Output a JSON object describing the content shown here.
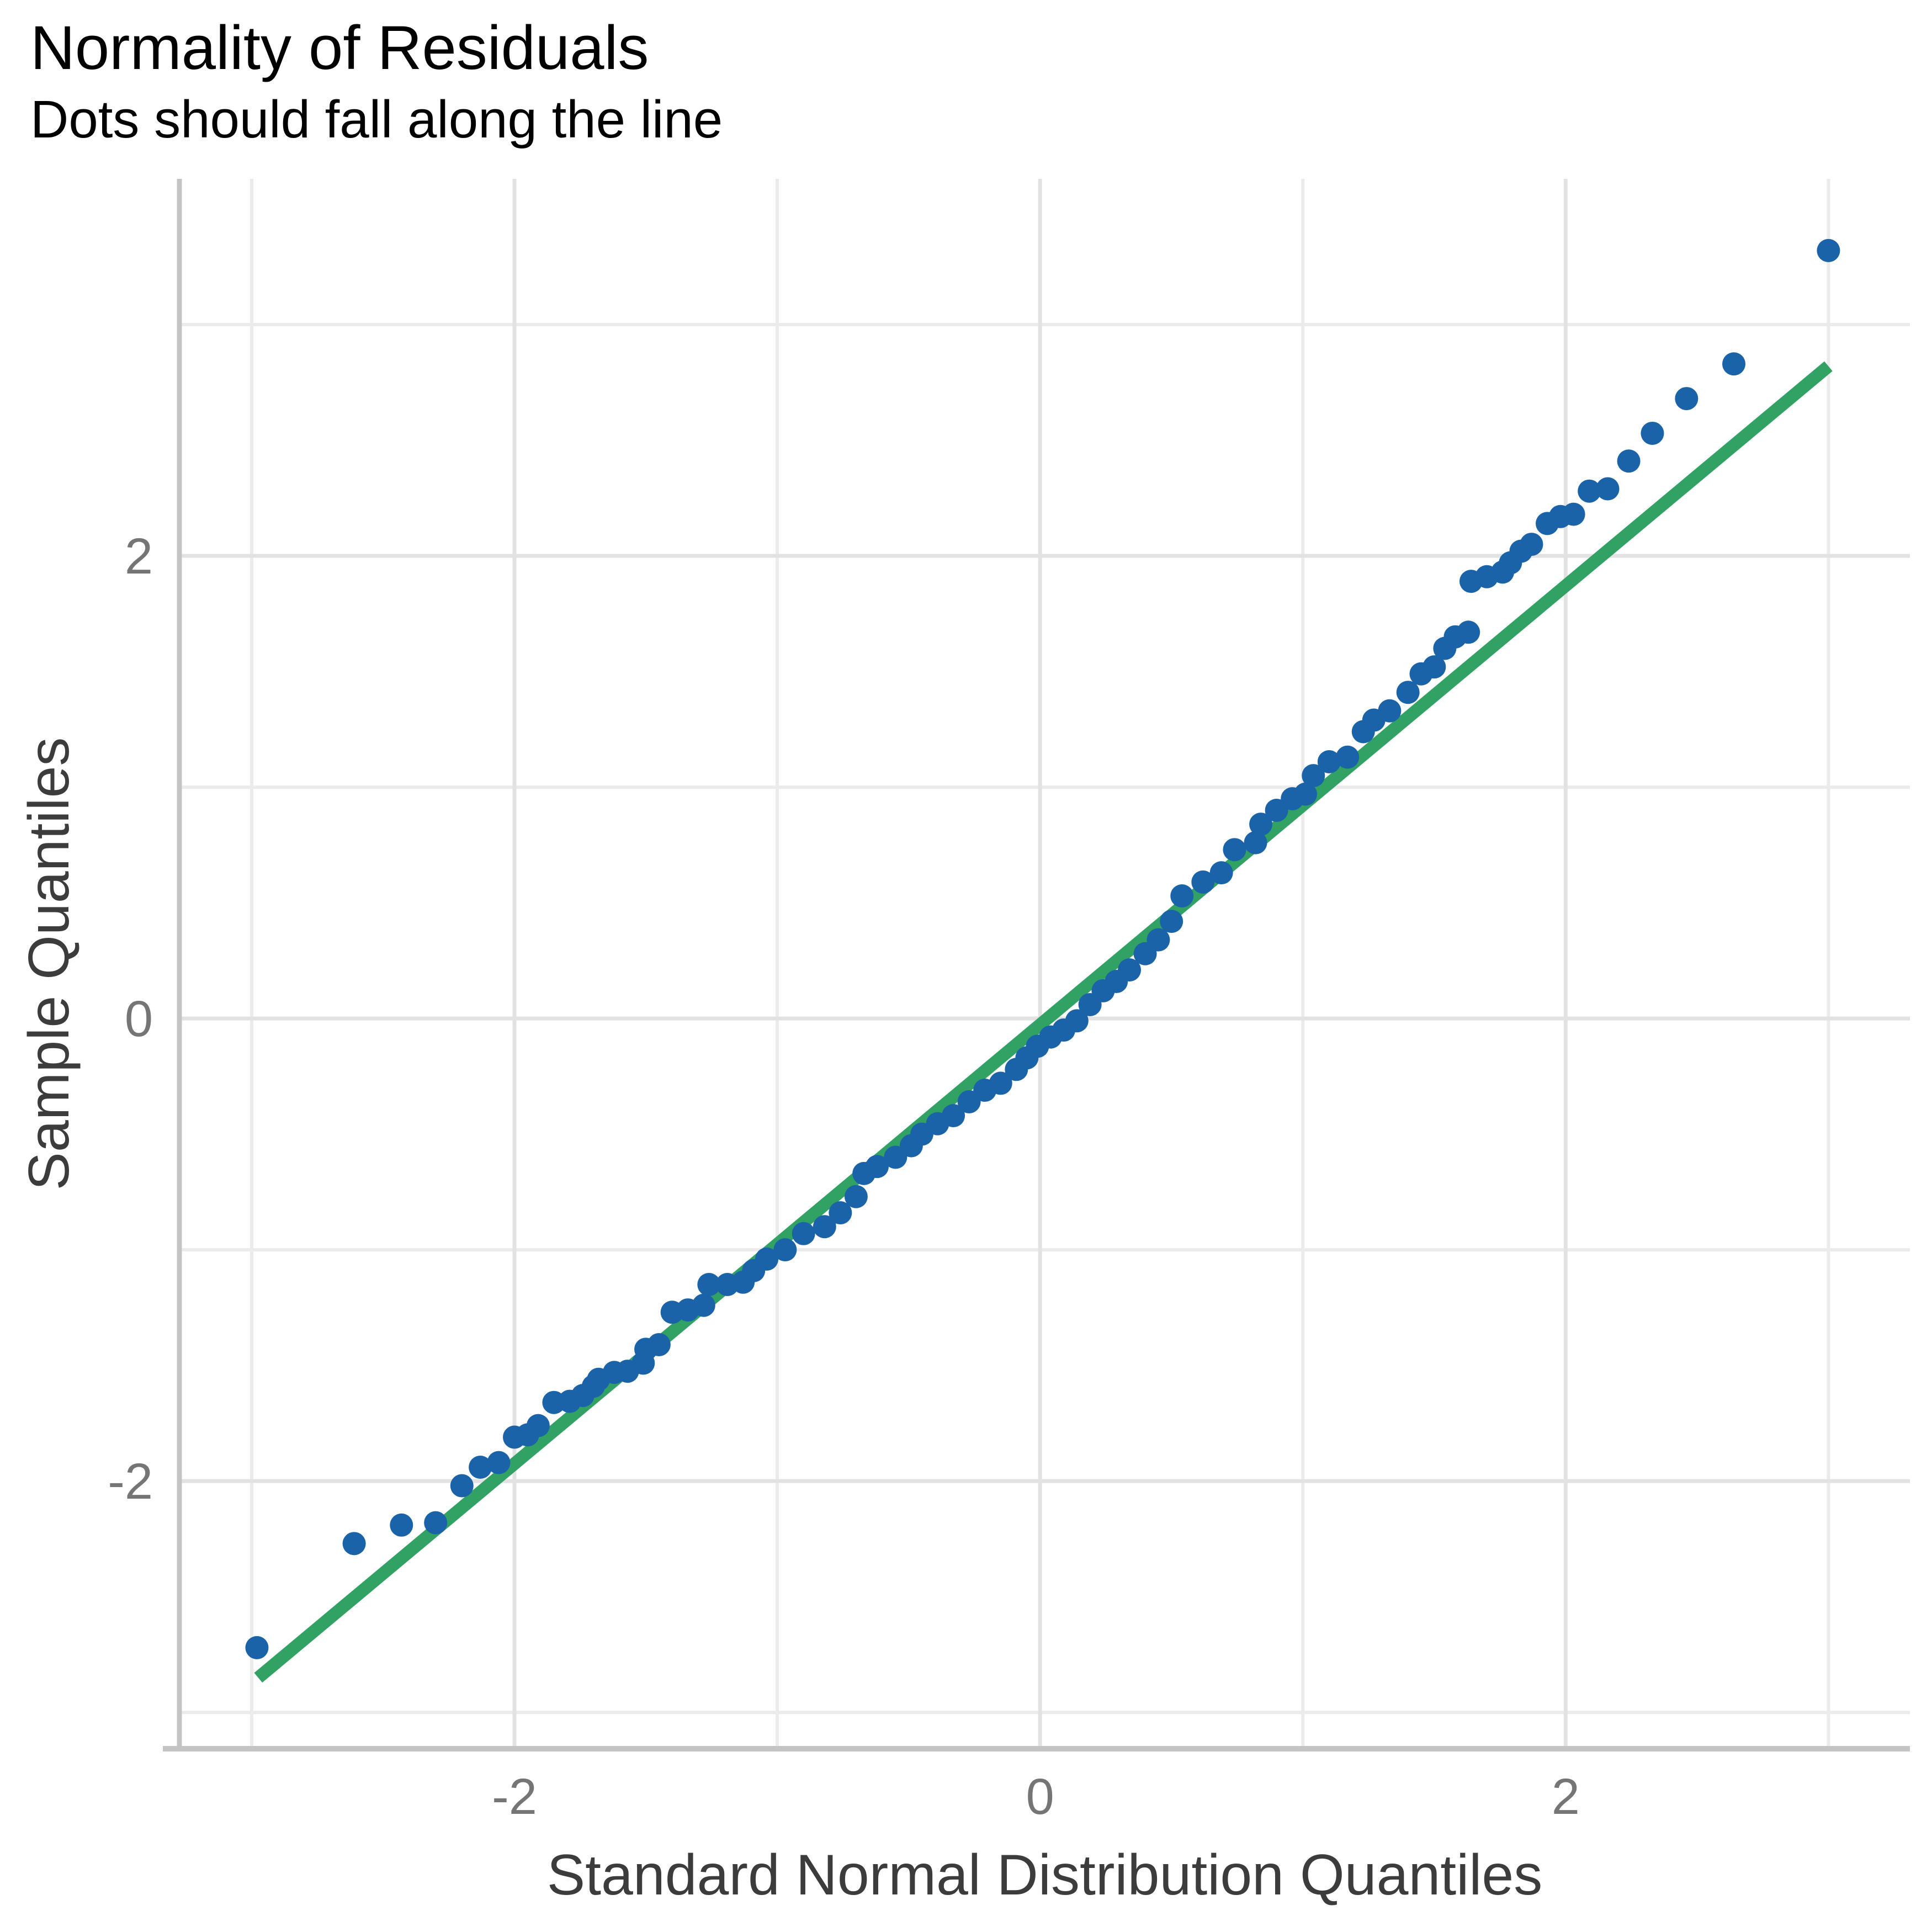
{
  "title": "Normality of Residuals",
  "subtitle": "Dots should fall along the line",
  "x_axis": {
    "label": "Standard Normal Distribution Quantiles",
    "tick_labels": [
      "-2",
      "0",
      "2"
    ],
    "tick_values": [
      -2,
      0,
      2
    ],
    "minor_gridlines": [
      -3,
      -1,
      1,
      3
    ],
    "range": [
      -3.275,
      3.31
    ]
  },
  "y_axis": {
    "label": "Sample Quantiles",
    "tick_labels": [
      "-2",
      "0",
      "2"
    ],
    "tick_values": [
      -2,
      0,
      2
    ],
    "minor_gridlines": [
      -3,
      -1,
      1,
      3
    ],
    "range": [
      -3.157,
      3.63
    ]
  },
  "colors": {
    "point_fill": "#1b63a8",
    "reference_line": "#31a264",
    "grid_major": "#e2e2e2",
    "grid_minor": "#ebebeb",
    "axis_line": "#c4c4c4",
    "tick_label": "#757575",
    "axis_title": "#3c3c3c",
    "title": "#000000",
    "background": "#ffffff"
  },
  "chart_data": {
    "type": "scatter",
    "title": "Normality of Residuals",
    "subtitle": "Dots should fall along the line",
    "xlabel": "Standard Normal Distribution Quantiles",
    "ylabel": "Sample Quantiles",
    "xlim": [
      -3.275,
      3.31
    ],
    "ylim": [
      -3.157,
      3.63
    ],
    "grid": true,
    "legend": false,
    "series": [
      {
        "name": "sample-vs-theoretical-quantiles",
        "x": [
          -2.98,
          -2.61,
          -2.43,
          -2.3,
          -2.2,
          -2.13,
          -2.06,
          -2.0,
          -1.95,
          -1.91,
          -1.85,
          -1.79,
          -1.74,
          -1.7,
          -1.68,
          -1.62,
          -1.57,
          -1.51,
          -1.5,
          -1.45,
          -1.4,
          -1.34,
          -1.28,
          -1.26,
          -1.19,
          -1.13,
          -1.09,
          -1.04,
          -0.97,
          -0.9,
          -0.82,
          -0.76,
          -0.7,
          -0.67,
          -0.62,
          -0.55,
          -0.49,
          -0.45,
          -0.39,
          -0.33,
          -0.27,
          -0.21,
          -0.15,
          -0.09,
          -0.05,
          -0.01,
          0.04,
          0.09,
          0.14,
          0.19,
          0.24,
          0.29,
          0.34,
          0.4,
          0.45,
          0.5,
          0.54,
          0.62,
          0.69,
          0.74,
          0.82,
          0.84,
          0.9,
          0.96,
          1.01,
          1.04,
          1.1,
          1.17,
          1.23,
          1.27,
          1.33,
          1.4,
          1.45,
          1.5,
          1.54,
          1.58,
          1.63,
          1.64,
          1.7,
          1.76,
          1.79,
          1.83,
          1.87,
          1.93,
          1.98,
          2.03,
          2.09,
          2.16,
          2.24,
          2.33,
          2.46,
          2.64,
          3.0
        ],
        "y": [
          -2.72,
          -2.27,
          -2.19,
          -2.18,
          -2.02,
          -1.94,
          -1.92,
          -1.81,
          -1.8,
          -1.76,
          -1.66,
          -1.655,
          -1.63,
          -1.59,
          -1.56,
          -1.53,
          -1.525,
          -1.49,
          -1.43,
          -1.41,
          -1.27,
          -1.26,
          -1.24,
          -1.15,
          -1.15,
          -1.14,
          -1.09,
          -1.04,
          -1.0,
          -0.93,
          -0.9,
          -0.84,
          -0.77,
          -0.67,
          -0.64,
          -0.6,
          -0.55,
          -0.5,
          -0.455,
          -0.42,
          -0.36,
          -0.31,
          -0.28,
          -0.22,
          -0.17,
          -0.12,
          -0.08,
          -0.05,
          -0.01,
          0.06,
          0.12,
          0.16,
          0.21,
          0.28,
          0.34,
          0.42,
          0.53,
          0.59,
          0.63,
          0.73,
          0.76,
          0.84,
          0.9,
          0.95,
          0.97,
          1.05,
          1.11,
          1.13,
          1.24,
          1.29,
          1.33,
          1.41,
          1.49,
          1.52,
          1.6,
          1.65,
          1.67,
          1.89,
          1.91,
          1.93,
          1.97,
          2.02,
          2.05,
          2.14,
          2.17,
          2.18,
          2.28,
          2.29,
          2.41,
          2.53,
          2.68,
          2.83,
          3.32
        ]
      }
    ],
    "reference_line": {
      "x1": -2.975,
      "y1": -2.85,
      "x2": 3.0,
      "y2": 2.82
    }
  }
}
